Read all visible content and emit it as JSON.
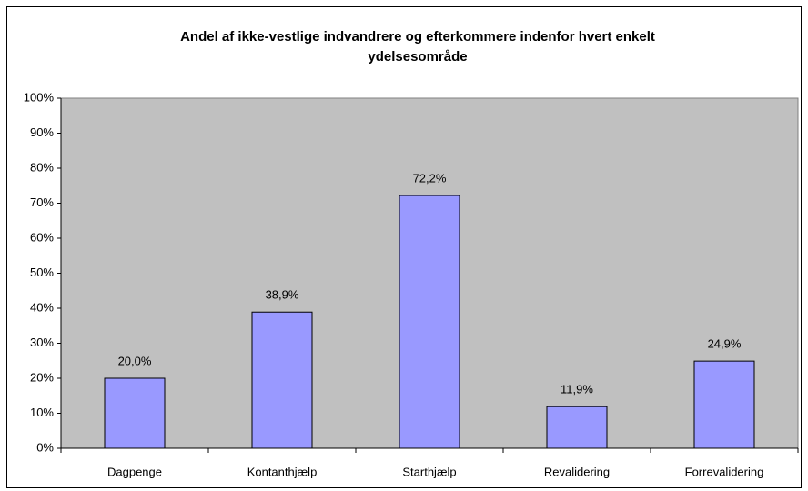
{
  "chart_data": {
    "type": "bar",
    "title": [
      "Andel af ikke-vestlige indvandrere og efterkommere indenfor hvert enkelt",
      "ydelsesområde"
    ],
    "categories": [
      "Dagpenge",
      "Kontanthjælp",
      "Starthjælp",
      "Revalidering",
      "Forrevalidering"
    ],
    "values": [
      20.0,
      38.9,
      72.2,
      11.9,
      24.9
    ],
    "value_labels": [
      "20,0%",
      "38,9%",
      "72,2%",
      "11,9%",
      "24,9%"
    ],
    "color": "#9999ff",
    "ylim": [
      0,
      100
    ],
    "yticks": [
      {
        "value": 0,
        "label": "0%"
      },
      {
        "value": 10,
        "label": "10%"
      },
      {
        "value": 20,
        "label": "20%"
      },
      {
        "value": 30,
        "label": "30%"
      },
      {
        "value": 40,
        "label": "40%"
      },
      {
        "value": 50,
        "label": "50%"
      },
      {
        "value": 60,
        "label": "60%"
      },
      {
        "value": 70,
        "label": "70%"
      },
      {
        "value": 80,
        "label": "80%"
      },
      {
        "value": 90,
        "label": "90%"
      },
      {
        "value": 100,
        "label": "100%"
      }
    ],
    "grid": false
  }
}
